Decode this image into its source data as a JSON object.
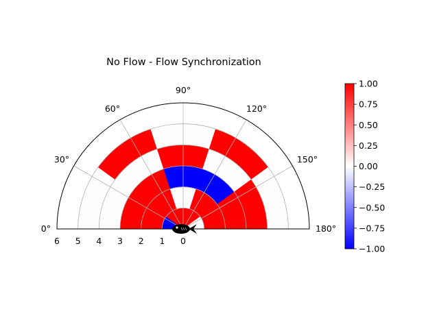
{
  "chart_data": {
    "type": "heatmap",
    "projection": "polar-half",
    "title": "No Flow - Flow Synchronization",
    "angle_tick_labels": [
      "0°",
      "30°",
      "60°",
      "90°",
      "120°",
      "150°",
      "180°"
    ],
    "radial_tick_labels": [
      "6",
      "5",
      "4",
      "3",
      "2",
      "1",
      "0"
    ],
    "rlim": [
      0,
      6
    ],
    "theta_range_deg": [
      0,
      180
    ],
    "theta_bin_edges_deg": [
      0,
      36,
      72,
      108,
      144,
      180
    ],
    "r_bin_edges": [
      0,
      1,
      2,
      3,
      4,
      5
    ],
    "grid": true,
    "colormap": "bwr",
    "colorbar": {
      "min": -1.0,
      "max": 1.0,
      "ticks": [
        1.0,
        0.75,
        0.5,
        0.25,
        0.0,
        -0.25,
        -0.5,
        -0.75,
        -1.0
      ],
      "tick_labels": [
        "1.00",
        "0.75",
        "0.50",
        "0.25",
        "0.00",
        "−0.25",
        "−0.50",
        "−0.75",
        "−1.00"
      ]
    },
    "cells": [
      [
        -1,
        1,
        1,
        1,
        0
      ],
      [
        1,
        1,
        0,
        1,
        1
      ],
      [
        1,
        1,
        -1,
        -1,
        1
      ],
      [
        0,
        0,
        1,
        0,
        1
      ],
      [
        0,
        1,
        0,
        1,
        0
      ]
    ],
    "colors": {
      "positive": "#ff0000",
      "negative": "#0000ff",
      "zero": "#fdfdfd",
      "grid": "#b0b0b0"
    },
    "marker_icon": "fish-icon"
  }
}
